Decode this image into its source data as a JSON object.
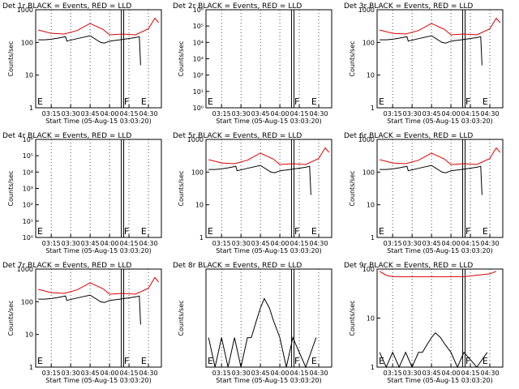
{
  "colors": {
    "events": "#000000",
    "lld": "#dd0000",
    "axis": "#000000"
  },
  "chart_data": [
    {
      "type": "line",
      "title": "Det 1r BLACK = Events, RED = LLD",
      "xlabel": "Start Time (05-Aug-15 03:03:20)",
      "ylabel": "Counts/sec",
      "yscale": "log",
      "xlim": [
        "03:03",
        "04:40"
      ],
      "ylim": [
        1,
        1000
      ],
      "xticks": [
        "03:15",
        "03:30",
        "03:45",
        "04:00",
        "04:15",
        "04:30"
      ],
      "yticks": [
        "1",
        "10",
        "100",
        "1000"
      ],
      "markers": [
        {
          "time": "04:10",
          "label": "F"
        },
        {
          "time": "04:23",
          "label": "E"
        },
        {
          "time": "03:03",
          "label": "E"
        }
      ],
      "series": [
        {
          "name": "BLACK = Events",
          "x": [
            "03:05",
            "03:10",
            "03:15",
            "03:20",
            "03:26",
            "03:27",
            "03:35",
            "03:45",
            "03:53",
            "03:56",
            "04:00",
            "04:08",
            "04:20",
            "04:23",
            "04:24"
          ],
          "values": [
            120,
            120,
            125,
            135,
            150,
            110,
            130,
            160,
            100,
            95,
            110,
            120,
            140,
            150,
            20
          ]
        },
        {
          "name": "RED = LLD",
          "x": [
            "03:05",
            "03:15",
            "03:25",
            "03:35",
            "03:45",
            "03:55",
            "04:00",
            "04:10",
            "04:20",
            "04:30",
            "04:35",
            "04:38"
          ],
          "values": [
            240,
            190,
            180,
            230,
            380,
            250,
            170,
            180,
            170,
            260,
            550,
            400
          ]
        }
      ]
    },
    {
      "type": "line",
      "title": "Det 2r BLACK = Events, RED = LLD",
      "xlabel": "Start Time (05-Aug-15 03:03:20)",
      "ylabel": "Counts/sec",
      "yscale": "log",
      "xlim": [
        "03:03",
        "04:40"
      ],
      "ylim": [
        1,
        1000000
      ],
      "xticks": [
        "03:15",
        "03:30",
        "03:45",
        "04:00",
        "04:15",
        "04:30"
      ],
      "yticks": [
        "10⁰",
        "10¹",
        "10²",
        "10³",
        "10⁴",
        "10⁵",
        "10⁶"
      ],
      "markers": [
        {
          "time": "04:10",
          "label": "F"
        },
        {
          "time": "04:23",
          "label": "E"
        },
        {
          "time": "03:03",
          "label": "E"
        }
      ],
      "series": []
    },
    {
      "type": "line",
      "title": "Det 3r BLACK = Events, RED = LLD",
      "xlabel": "Start Time (05-Aug-15 03:03:20)",
      "ylabel": "Counts/sec",
      "yscale": "log",
      "xlim": [
        "03:03",
        "04:40"
      ],
      "ylim": [
        1,
        1000
      ],
      "xticks": [
        "03:15",
        "03:30",
        "03:45",
        "04:00",
        "04:15",
        "04:30"
      ],
      "yticks": [
        "1",
        "10",
        "100",
        "1000"
      ],
      "markers": [
        {
          "time": "04:10",
          "label": "F"
        },
        {
          "time": "04:23",
          "label": "E"
        },
        {
          "time": "03:03",
          "label": "E"
        }
      ],
      "series": [
        {
          "name": "BLACK = Events",
          "x": [
            "03:05",
            "03:10",
            "03:15",
            "03:20",
            "03:26",
            "03:27",
            "03:35",
            "03:45",
            "03:53",
            "03:56",
            "04:00",
            "04:08",
            "04:20",
            "04:23",
            "04:24"
          ],
          "values": [
            120,
            120,
            125,
            135,
            150,
            110,
            130,
            160,
            100,
            95,
            110,
            120,
            140,
            150,
            20
          ]
        },
        {
          "name": "RED = LLD",
          "x": [
            "03:05",
            "03:15",
            "03:25",
            "03:35",
            "03:45",
            "03:55",
            "04:00",
            "04:10",
            "04:20",
            "04:30",
            "04:35",
            "04:38"
          ],
          "values": [
            240,
            190,
            180,
            230,
            380,
            250,
            170,
            180,
            170,
            260,
            550,
            400
          ]
        }
      ]
    },
    {
      "type": "line",
      "title": "Det 4r BLACK = Events, RED = LLD",
      "xlabel": "Start Time (05-Aug-15 03:03:20)",
      "ylabel": "Counts/sec",
      "yscale": "log",
      "xlim": [
        "03:03",
        "04:40"
      ],
      "ylim": [
        1,
        1000000
      ],
      "xticks": [
        "03:15",
        "03:30",
        "03:45",
        "04:00",
        "04:15",
        "04:30"
      ],
      "yticks": [
        "10⁰",
        "10¹",
        "10²",
        "10³",
        "10⁴",
        "10⁵",
        "10⁶"
      ],
      "markers": [
        {
          "time": "04:10",
          "label": "F"
        },
        {
          "time": "04:23",
          "label": "E"
        },
        {
          "time": "03:03",
          "label": "E"
        }
      ],
      "series": []
    },
    {
      "type": "line",
      "title": "Det 5r BLACK = Events, RED = LLD",
      "xlabel": "Start Time (05-Aug-15 03:03:20)",
      "ylabel": "Counts/sec",
      "yscale": "log",
      "xlim": [
        "03:03",
        "04:40"
      ],
      "ylim": [
        1,
        1000
      ],
      "xticks": [
        "03:15",
        "03:30",
        "03:45",
        "04:00",
        "04:15",
        "04:30"
      ],
      "yticks": [
        "1",
        "10",
        "100",
        "1000"
      ],
      "markers": [
        {
          "time": "04:10",
          "label": "F"
        },
        {
          "time": "04:23",
          "label": "E"
        },
        {
          "time": "03:03",
          "label": "E"
        }
      ],
      "series": [
        {
          "name": "BLACK = Events",
          "x": [
            "03:05",
            "03:10",
            "03:15",
            "03:20",
            "03:26",
            "03:27",
            "03:35",
            "03:45",
            "03:53",
            "03:56",
            "04:00",
            "04:08",
            "04:20",
            "04:23",
            "04:24"
          ],
          "values": [
            120,
            120,
            125,
            135,
            150,
            110,
            130,
            160,
            100,
            95,
            110,
            120,
            140,
            150,
            20
          ]
        },
        {
          "name": "RED = LLD",
          "x": [
            "03:05",
            "03:15",
            "03:25",
            "03:35",
            "03:45",
            "03:55",
            "04:00",
            "04:10",
            "04:20",
            "04:30",
            "04:35",
            "04:38"
          ],
          "values": [
            240,
            190,
            180,
            230,
            380,
            250,
            170,
            180,
            170,
            260,
            550,
            400
          ]
        }
      ]
    },
    {
      "type": "line",
      "title": "Det 6r BLACK = Events, RED = LLD",
      "xlabel": "Start Time (05-Aug-15 03:03:20)",
      "ylabel": "Counts/sec",
      "yscale": "log",
      "xlim": [
        "03:03",
        "04:40"
      ],
      "ylim": [
        1,
        1000
      ],
      "xticks": [
        "03:15",
        "03:30",
        "03:45",
        "04:00",
        "04:15",
        "04:30"
      ],
      "yticks": [
        "1",
        "10",
        "100",
        "1000"
      ],
      "markers": [
        {
          "time": "04:10",
          "label": "F"
        },
        {
          "time": "04:23",
          "label": "E"
        },
        {
          "time": "03:03",
          "label": "E"
        }
      ],
      "series": [
        {
          "name": "BLACK = Events",
          "x": [
            "03:05",
            "03:10",
            "03:15",
            "03:20",
            "03:26",
            "03:27",
            "03:35",
            "03:45",
            "03:53",
            "03:56",
            "04:00",
            "04:08",
            "04:20",
            "04:23",
            "04:24"
          ],
          "values": [
            120,
            120,
            125,
            135,
            150,
            110,
            130,
            160,
            100,
            95,
            110,
            120,
            140,
            150,
            20
          ]
        },
        {
          "name": "RED = LLD",
          "x": [
            "03:05",
            "03:15",
            "03:25",
            "03:35",
            "03:45",
            "03:55",
            "04:00",
            "04:10",
            "04:20",
            "04:30",
            "04:35",
            "04:38"
          ],
          "values": [
            240,
            190,
            180,
            230,
            380,
            250,
            170,
            180,
            170,
            260,
            550,
            400
          ]
        }
      ]
    },
    {
      "type": "line",
      "title": "Det 7r BLACK = Events, RED = LLD",
      "xlabel": "Start Time (05-Aug-15 03:03:20)",
      "ylabel": "Counts/sec",
      "yscale": "log",
      "xlim": [
        "03:03",
        "04:40"
      ],
      "ylim": [
        1,
        1000
      ],
      "xticks": [
        "03:15",
        "03:30",
        "03:45",
        "04:00",
        "04:15",
        "04:30"
      ],
      "yticks": [
        "1",
        "10",
        "100",
        "1000"
      ],
      "markers": [
        {
          "time": "04:10",
          "label": "F"
        },
        {
          "time": "04:23",
          "label": "E"
        },
        {
          "time": "03:03",
          "label": "E"
        }
      ],
      "series": [
        {
          "name": "BLACK = Events",
          "x": [
            "03:05",
            "03:10",
            "03:15",
            "03:20",
            "03:26",
            "03:27",
            "03:35",
            "03:45",
            "03:53",
            "03:56",
            "04:00",
            "04:08",
            "04:20",
            "04:23",
            "04:24"
          ],
          "values": [
            120,
            120,
            125,
            135,
            150,
            110,
            130,
            160,
            100,
            95,
            110,
            120,
            140,
            150,
            20
          ]
        },
        {
          "name": "RED = LLD",
          "x": [
            "03:05",
            "03:15",
            "03:25",
            "03:35",
            "03:45",
            "03:55",
            "04:00",
            "04:10",
            "04:20",
            "04:30",
            "04:35",
            "04:38"
          ],
          "values": [
            240,
            190,
            180,
            230,
            380,
            250,
            170,
            180,
            170,
            260,
            550,
            400
          ]
        }
      ]
    },
    {
      "type": "line",
      "title": "Det 8r BLACK = Events, RED = LLD",
      "xlabel": "Start Time (05-Aug-15 03:03:20)",
      "ylabel": "Counts/sec",
      "yscale": "log",
      "xlim": [
        "03:03",
        "04:40"
      ],
      "ylim": [
        1,
        10
      ],
      "xticks": [
        "03:15",
        "03:30",
        "03:45",
        "04:00",
        "04:15",
        "04:30"
      ],
      "yticks": [],
      "markers": [
        {
          "time": "04:10",
          "label": "F"
        },
        {
          "time": "04:23",
          "label": "E"
        },
        {
          "time": "03:03",
          "label": "E"
        }
      ],
      "series": [
        {
          "name": "BLACK = Events",
          "x": [
            "03:05",
            "03:10",
            "03:15",
            "03:20",
            "03:25",
            "03:30",
            "03:35",
            "03:38",
            "03:42",
            "03:45",
            "03:48",
            "03:52",
            "03:55",
            "04:00",
            "04:05",
            "04:10",
            "04:20",
            "04:28"
          ],
          "values": [
            2,
            1,
            2,
            1,
            2,
            1,
            2,
            2,
            3,
            4,
            5,
            4,
            3,
            2,
            1,
            2,
            1,
            2
          ]
        }
      ]
    },
    {
      "type": "line",
      "title": "Det 9r BLACK = Events, RED = LLD",
      "xlabel": "Start Time (05-Aug-15 03:03:20)",
      "ylabel": "Counts/sec",
      "yscale": "log",
      "xlim": [
        "03:03",
        "04:40"
      ],
      "ylim": [
        1,
        100
      ],
      "xticks": [
        "03:15",
        "03:30",
        "03:45",
        "04:00",
        "04:15",
        "04:30"
      ],
      "yticks": [
        "1",
        "10",
        "100"
      ],
      "markers": [
        {
          "time": "04:10",
          "label": "F"
        },
        {
          "time": "04:23",
          "label": "E"
        },
        {
          "time": "03:03",
          "label": "E"
        }
      ],
      "series": [
        {
          "name": "BLACK = Events",
          "x": [
            "03:05",
            "03:10",
            "03:15",
            "03:20",
            "03:25",
            "03:30",
            "03:35",
            "03:38",
            "03:42",
            "03:45",
            "03:48",
            "03:52",
            "03:55",
            "04:00",
            "04:05",
            "04:10",
            "04:20",
            "04:28"
          ],
          "values": [
            2,
            1,
            2,
            1,
            2,
            1,
            2,
            2,
            3,
            4,
            5,
            4,
            3,
            2,
            1,
            2,
            1,
            2
          ]
        },
        {
          "name": "RED = LLD",
          "x": [
            "03:05",
            "03:10",
            "03:15",
            "03:25",
            "03:35",
            "03:45",
            "03:55",
            "04:00",
            "04:10",
            "04:20",
            "04:30",
            "04:35"
          ],
          "values": [
            90,
            75,
            70,
            70,
            70,
            70,
            70,
            70,
            70,
            75,
            80,
            90
          ]
        }
      ]
    }
  ]
}
